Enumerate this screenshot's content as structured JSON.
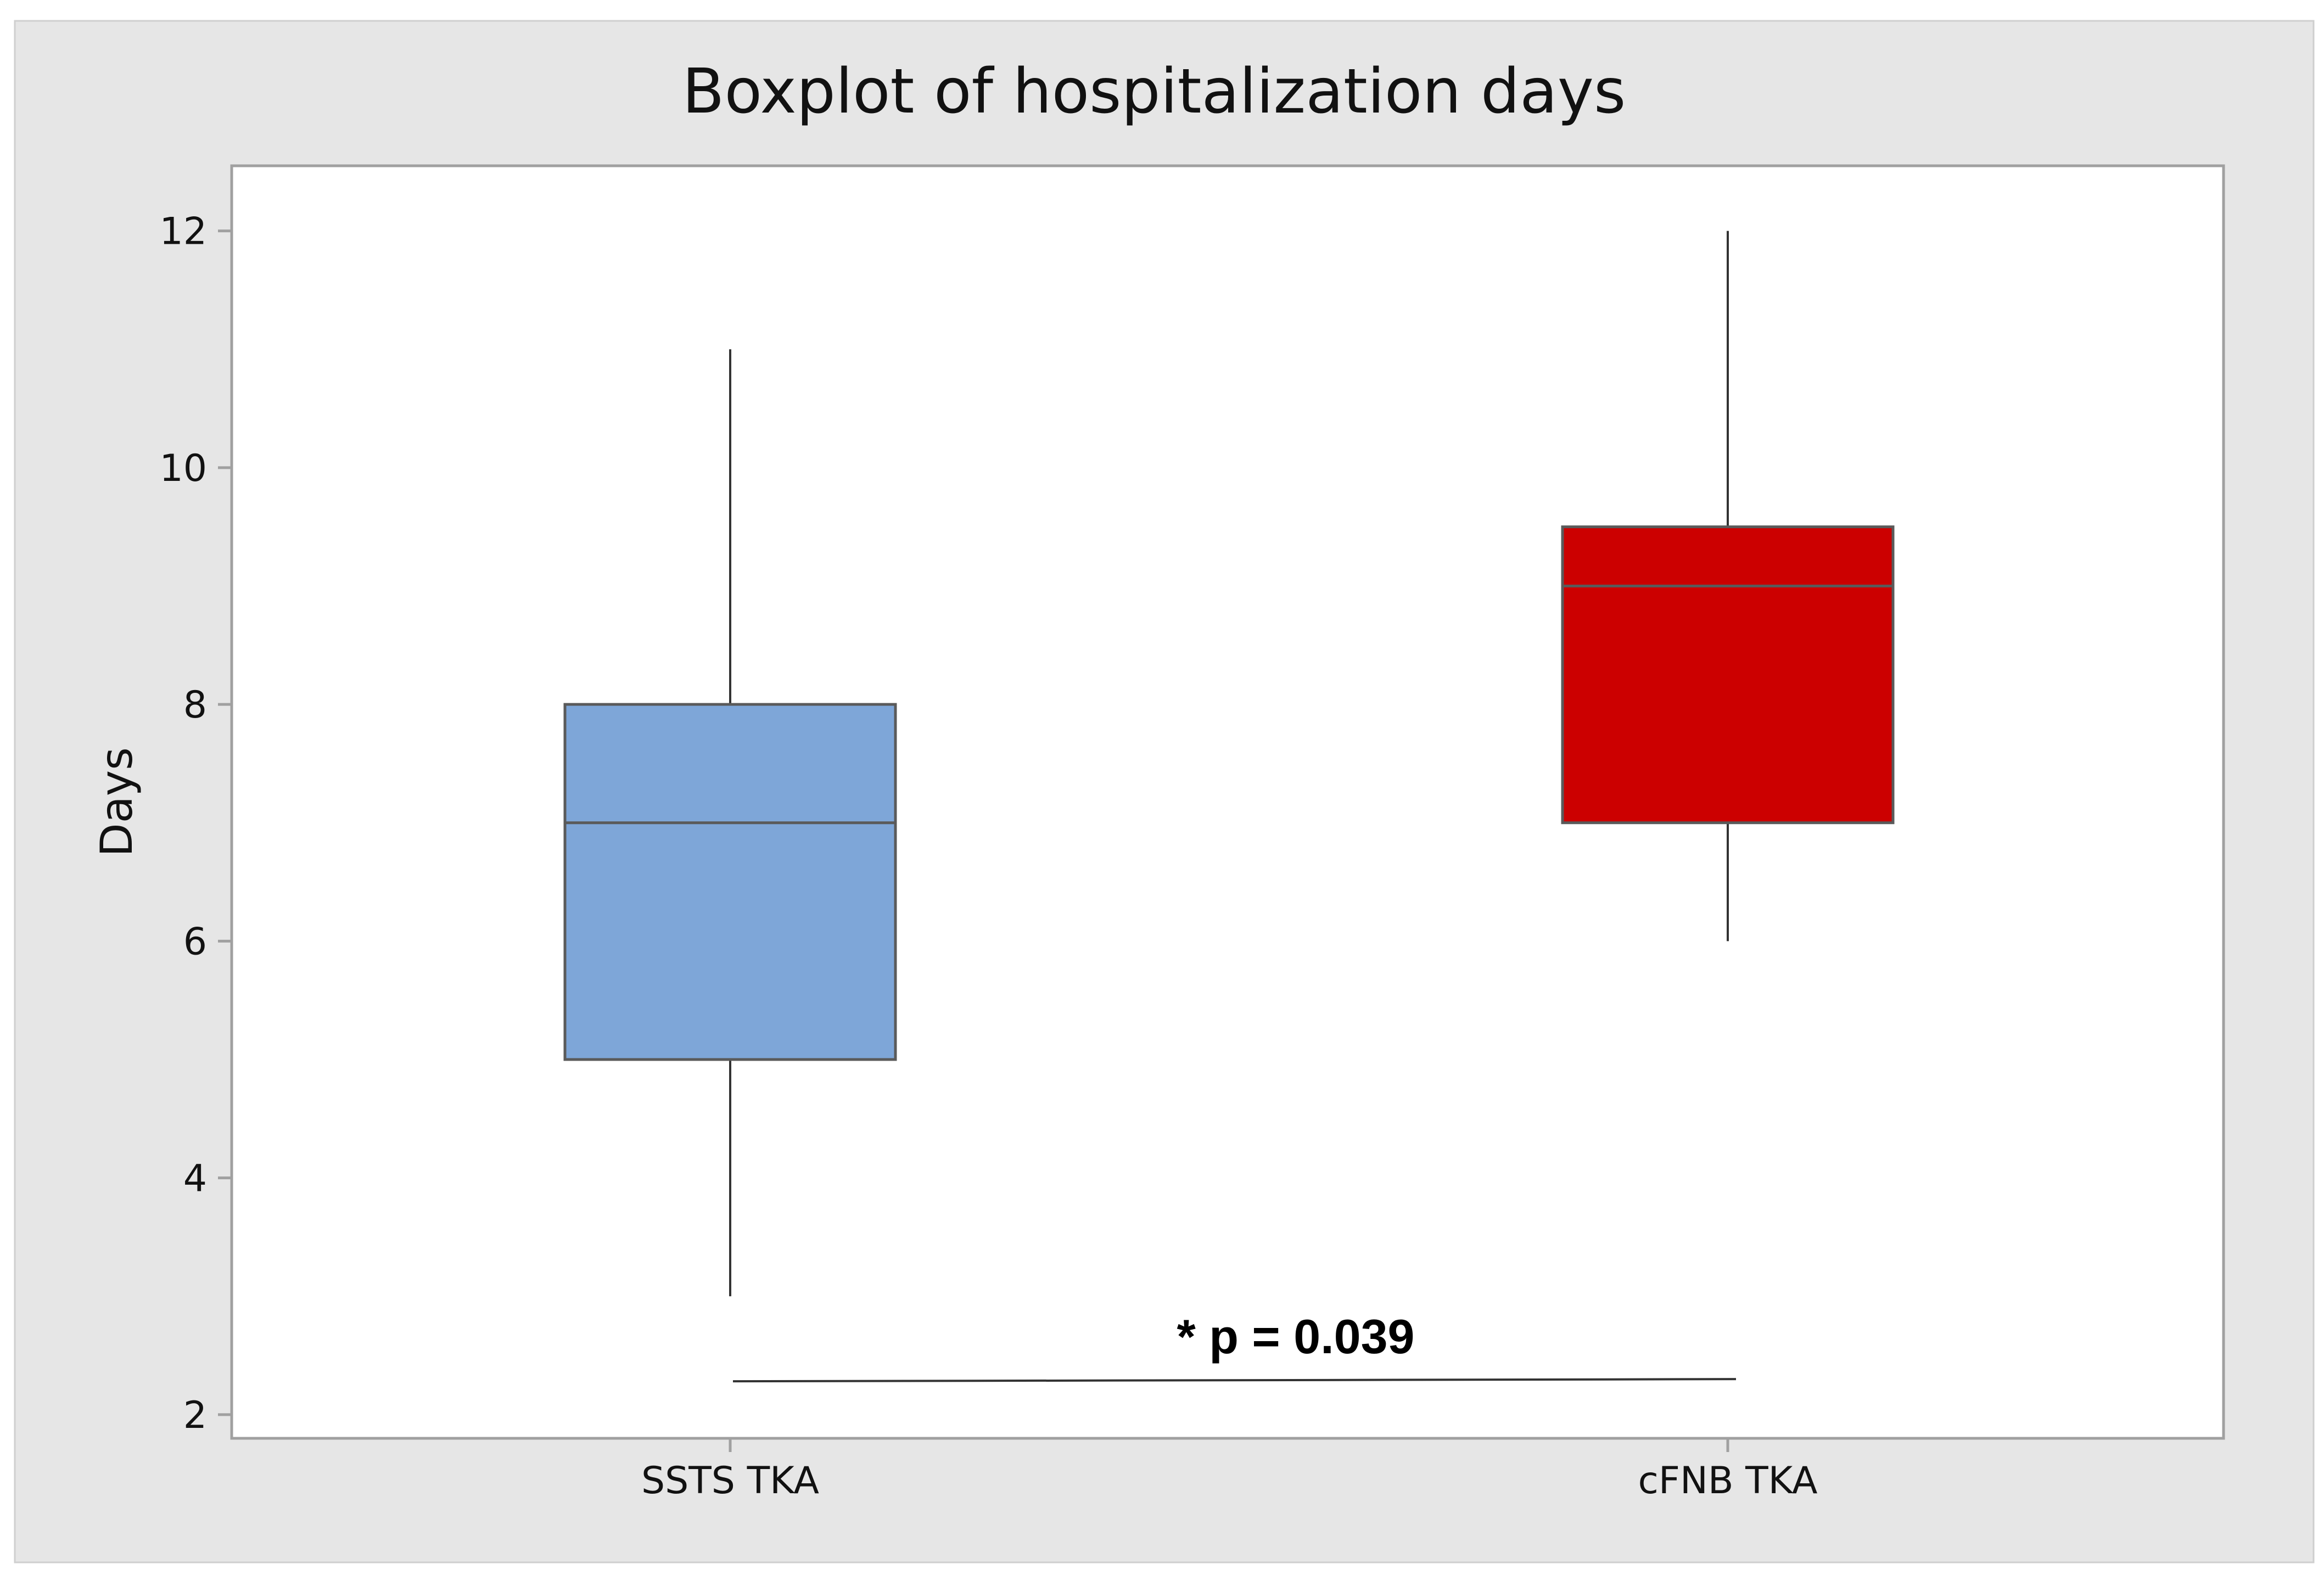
{
  "chart_data": {
    "type": "boxplot",
    "title": "Boxplot of hospitalization days",
    "xlabel": "",
    "ylabel": "Days",
    "ylim": [
      1.8,
      12.55
    ],
    "yticks": [
      2,
      4,
      6,
      8,
      10,
      12
    ],
    "yticklabels": [
      "2",
      "4",
      "6",
      "8",
      "10",
      "12"
    ],
    "grid": false,
    "legend": "none",
    "categories": [
      "SSTS TKA",
      "cFNB TKA"
    ],
    "boxes": [
      {
        "category": "SSTS TKA",
        "min": 3,
        "q1": 5,
        "median": 7,
        "q3": 8,
        "max": 11,
        "color": "#7ea6d8"
      },
      {
        "category": "cFNB TKA",
        "min": 6,
        "q1": 7,
        "median": 9,
        "q3": 9.5,
        "max": 12,
        "color": "#cc0000"
      }
    ],
    "annotation": {
      "text": "* p = 0.039",
      "y": 2.3
    }
  },
  "colors": {
    "outer_background": "#e6e6e6",
    "plot_background": "#ffffff",
    "box_edge": "#5a5a5a",
    "axis": "#a0a0a0"
  }
}
